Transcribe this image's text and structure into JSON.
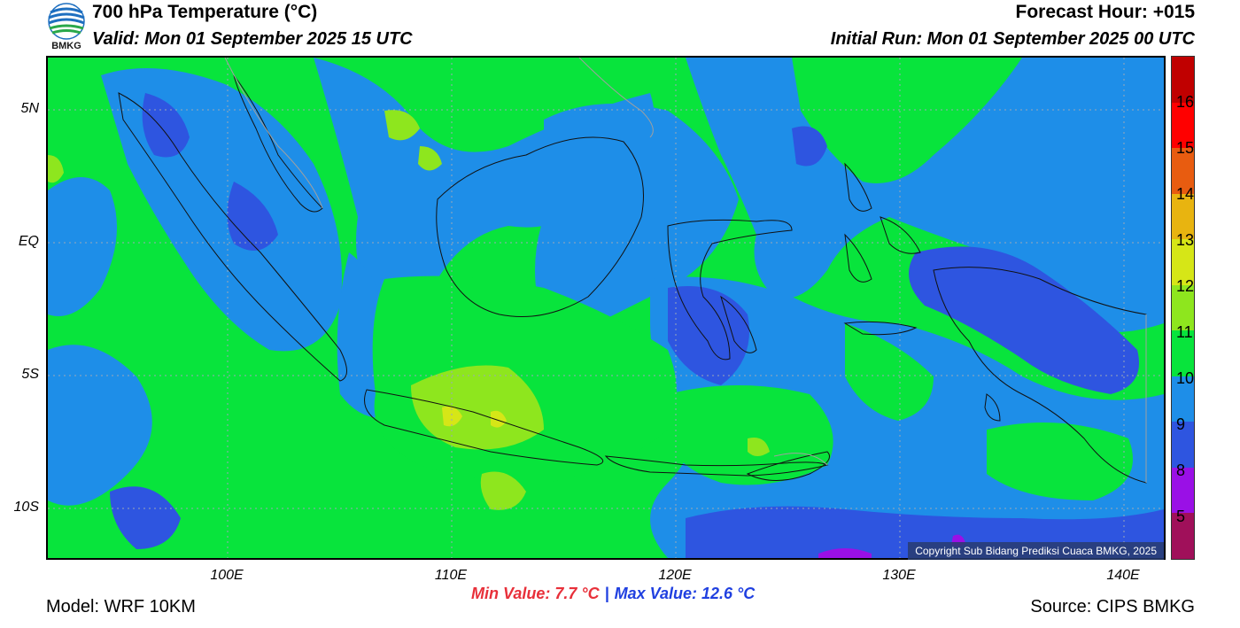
{
  "header": {
    "title": "700 hPa Temperature (°C)",
    "valid": "Valid: Mon 01 September 2025 15 UTC",
    "forecast_hour": "Forecast Hour: +015",
    "initial_run": "Initial Run: Mon 01 September 2025 00 UTC",
    "logo_text": "BMKG"
  },
  "map": {
    "lat_labels": [
      "5N",
      "EQ",
      "5S",
      "10S"
    ],
    "lon_labels": [
      "100E",
      "110E",
      "120E",
      "130E",
      "140E"
    ],
    "copyright": "Copyright Sub Bidang Prediksi Cuaca BMKG, 2025",
    "grid": true,
    "colors": {
      "ocean_green": "#08e43c",
      "blue_9_10": "#1e8ee8",
      "blue_8_9": "#2e55e0",
      "lime_11_12": "#8ee61e",
      "yellow_12_13": "#d6e617",
      "purple_5_8": "#9a10e6"
    }
  },
  "colorbar": {
    "labels": [
      "16",
      "15",
      "14",
      "13",
      "12",
      "11",
      "10",
      "9",
      "8",
      "5"
    ],
    "colors": [
      "#c00000",
      "#ff0000",
      "#e85c10",
      "#e8b410",
      "#d6e617",
      "#8ee61e",
      "#08e43c",
      "#1e8ee8",
      "#2e55e0",
      "#9a10e6",
      "#a0105a"
    ]
  },
  "footer": {
    "min_value": "Min Value: 7.7 °C",
    "separator": "|",
    "max_value": "Max Value: 12.6 °C",
    "model": "Model: WRF 10KM",
    "source": "Source: CIPS BMKG"
  }
}
